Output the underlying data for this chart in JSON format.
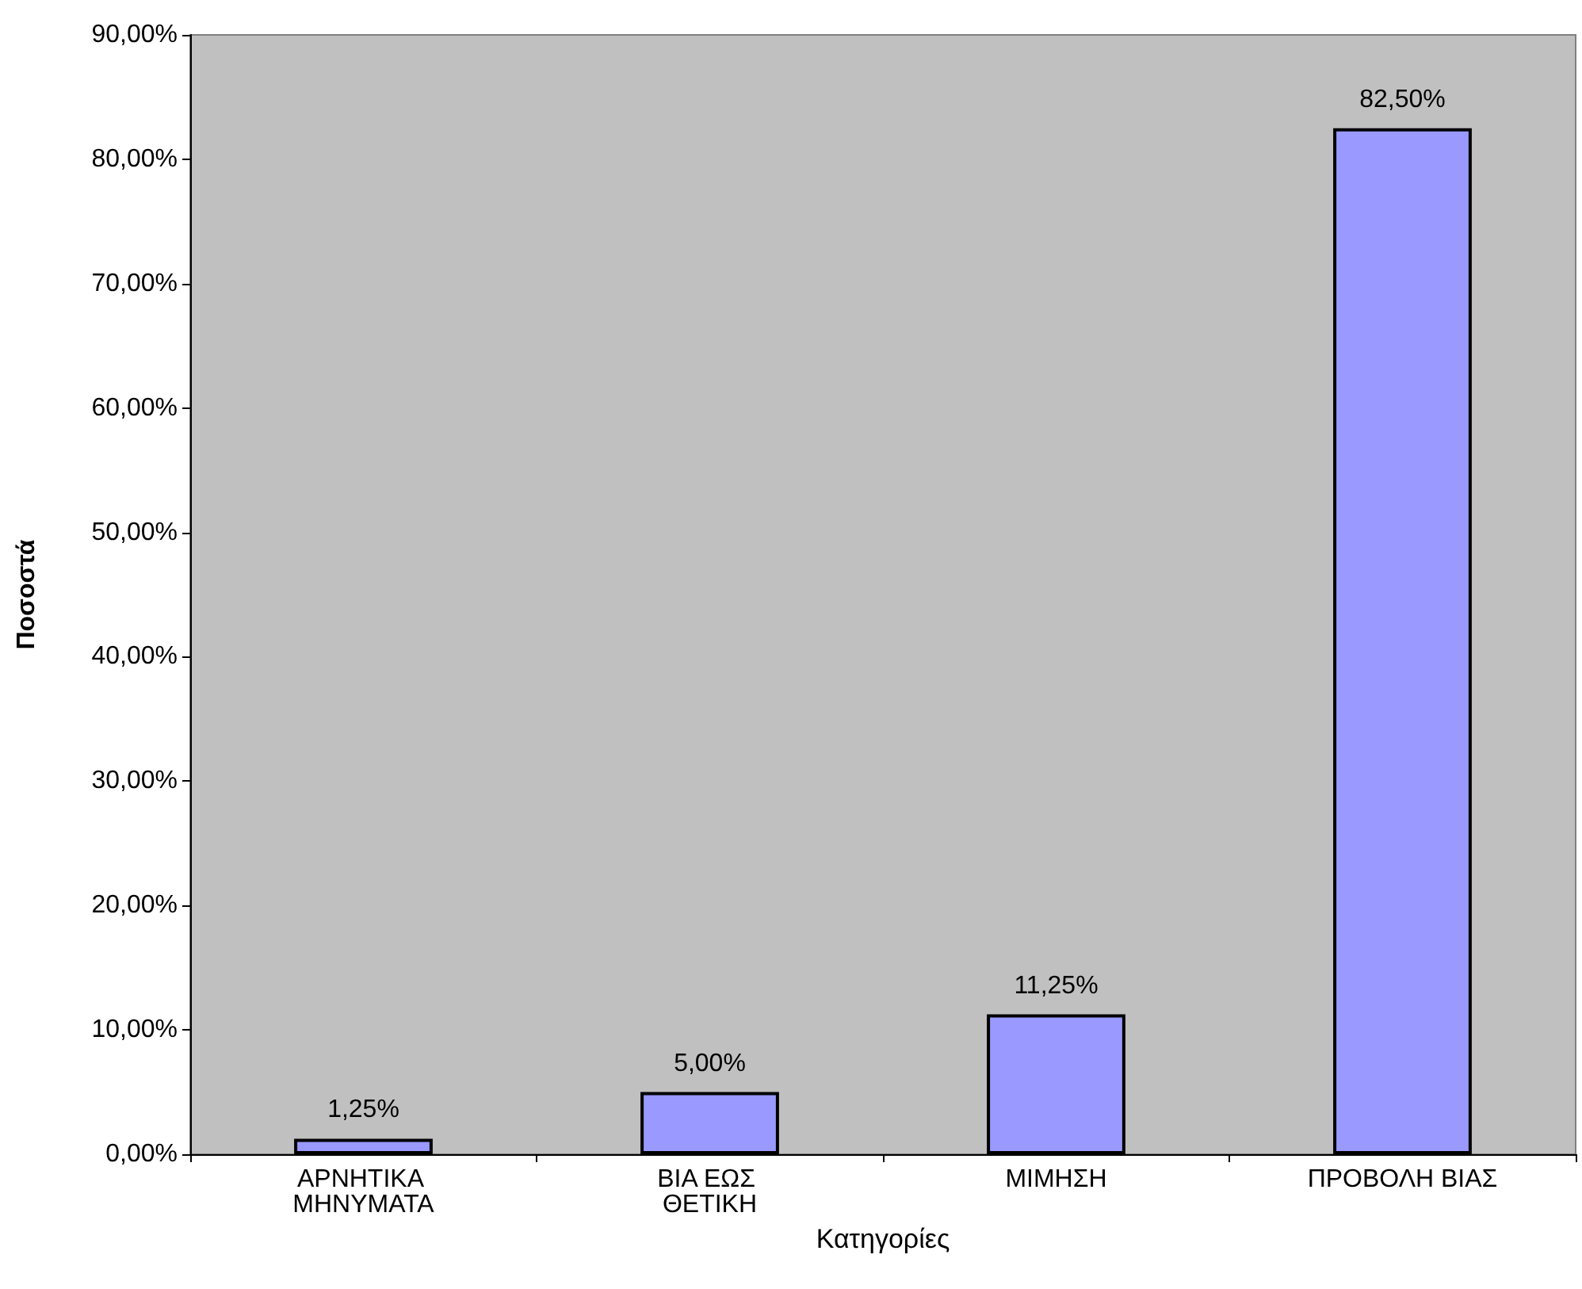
{
  "chart_data": {
    "type": "bar",
    "xlabel": "Κατηγορίες",
    "ylabel": "Ποσοστά",
    "categories": [
      "ΑΡΝΗΤΙΚΑ ΜΗΝΥΜΑΤΑ",
      "ΒΙΑ ΕΩΣ ΘΕΤΙΚΗ",
      "ΜΙΜΗΣΗ",
      "ΠΡΟΒΟΛΗ ΒΙΑΣ"
    ],
    "values": [
      1.25,
      5,
      11.25,
      82.5
    ],
    "value_labels": [
      "1,25%",
      "5,00%",
      "11,25%",
      "82,50%"
    ],
    "color": "#9999ff",
    "ylim": [
      0,
      90
    ],
    "yticks": [
      {
        "value": 0,
        "label": "0,00%"
      },
      {
        "value": 10,
        "label": "10,00%"
      },
      {
        "value": 20,
        "label": "20,00%"
      },
      {
        "value": 30,
        "label": "30,00%"
      },
      {
        "value": 40,
        "label": "40,00%"
      },
      {
        "value": 50,
        "label": "50,00%"
      },
      {
        "value": 60,
        "label": "60,00%"
      },
      {
        "value": 70,
        "label": "70,00%"
      },
      {
        "value": 80,
        "label": "80,00%"
      },
      {
        "value": 90,
        "label": "90,00%"
      }
    ],
    "grid": false
  }
}
